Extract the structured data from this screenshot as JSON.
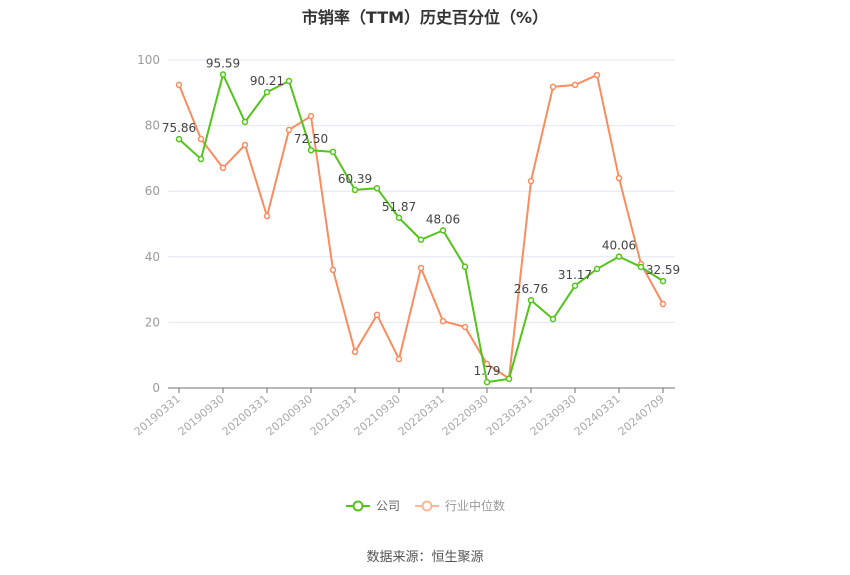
{
  "title": "市销率（TTM）历史百分位（%）",
  "legend": {
    "items": [
      {
        "label": "公司",
        "color": "#52c41a"
      },
      {
        "label": "行业中位数",
        "color": "#fa8c5f"
      }
    ]
  },
  "source": "数据来源：恒生聚源",
  "chart_data": {
    "type": "line",
    "title": "市销率（TTM）历史百分位（%）",
    "xlabel": "",
    "ylabel": "",
    "ylim": [
      0,
      100
    ],
    "yticks": [
      0,
      20,
      40,
      60,
      80,
      100
    ],
    "grid": true,
    "legend_position": "bottom",
    "xtick_labels": [
      "20190331",
      "20190930",
      "20200331",
      "20200930",
      "20210331",
      "20210930",
      "20220331",
      "20220930",
      "20230331",
      "20230930",
      "20240331",
      "20240709"
    ],
    "x": [
      "20190331",
      "p2",
      "20190930",
      "p4",
      "20200331",
      "p6",
      "20200930",
      "p8",
      "20210331",
      "p10",
      "20210930",
      "p12",
      "20220331",
      "p14",
      "20220930",
      "p16",
      "20230331",
      "p18",
      "20230930",
      "p20",
      "20240331",
      "p22",
      "20240709"
    ],
    "series": [
      {
        "name": "公司",
        "color": "#52c41a",
        "values": [
          75.86,
          69.8,
          95.59,
          81.1,
          90.21,
          93.6,
          72.5,
          72.0,
          60.39,
          60.9,
          51.87,
          45.2,
          48.06,
          37.0,
          1.79,
          2.8,
          26.76,
          21.0,
          31.17,
          36.3,
          40.06,
          36.9,
          32.59
        ],
        "labels": {
          "0": "75.86",
          "2": "95.59",
          "4": "90.21",
          "6": "72.50",
          "8": "60.39",
          "10": "51.87",
          "12": "48.06",
          "14": "1.79",
          "16": "26.76",
          "18": "31.17",
          "20": "40.06",
          "22": "32.59"
        }
      },
      {
        "name": "行业中位数",
        "color": "#fa8c5f",
        "values": [
          92.4,
          75.9,
          67.1,
          74.1,
          52.4,
          78.7,
          82.9,
          36.0,
          11.0,
          22.3,
          8.8,
          36.6,
          20.4,
          18.6,
          7.3,
          2.9,
          63.1,
          91.8,
          92.4,
          95.4,
          64.0,
          37.8,
          25.6
        ]
      }
    ]
  }
}
